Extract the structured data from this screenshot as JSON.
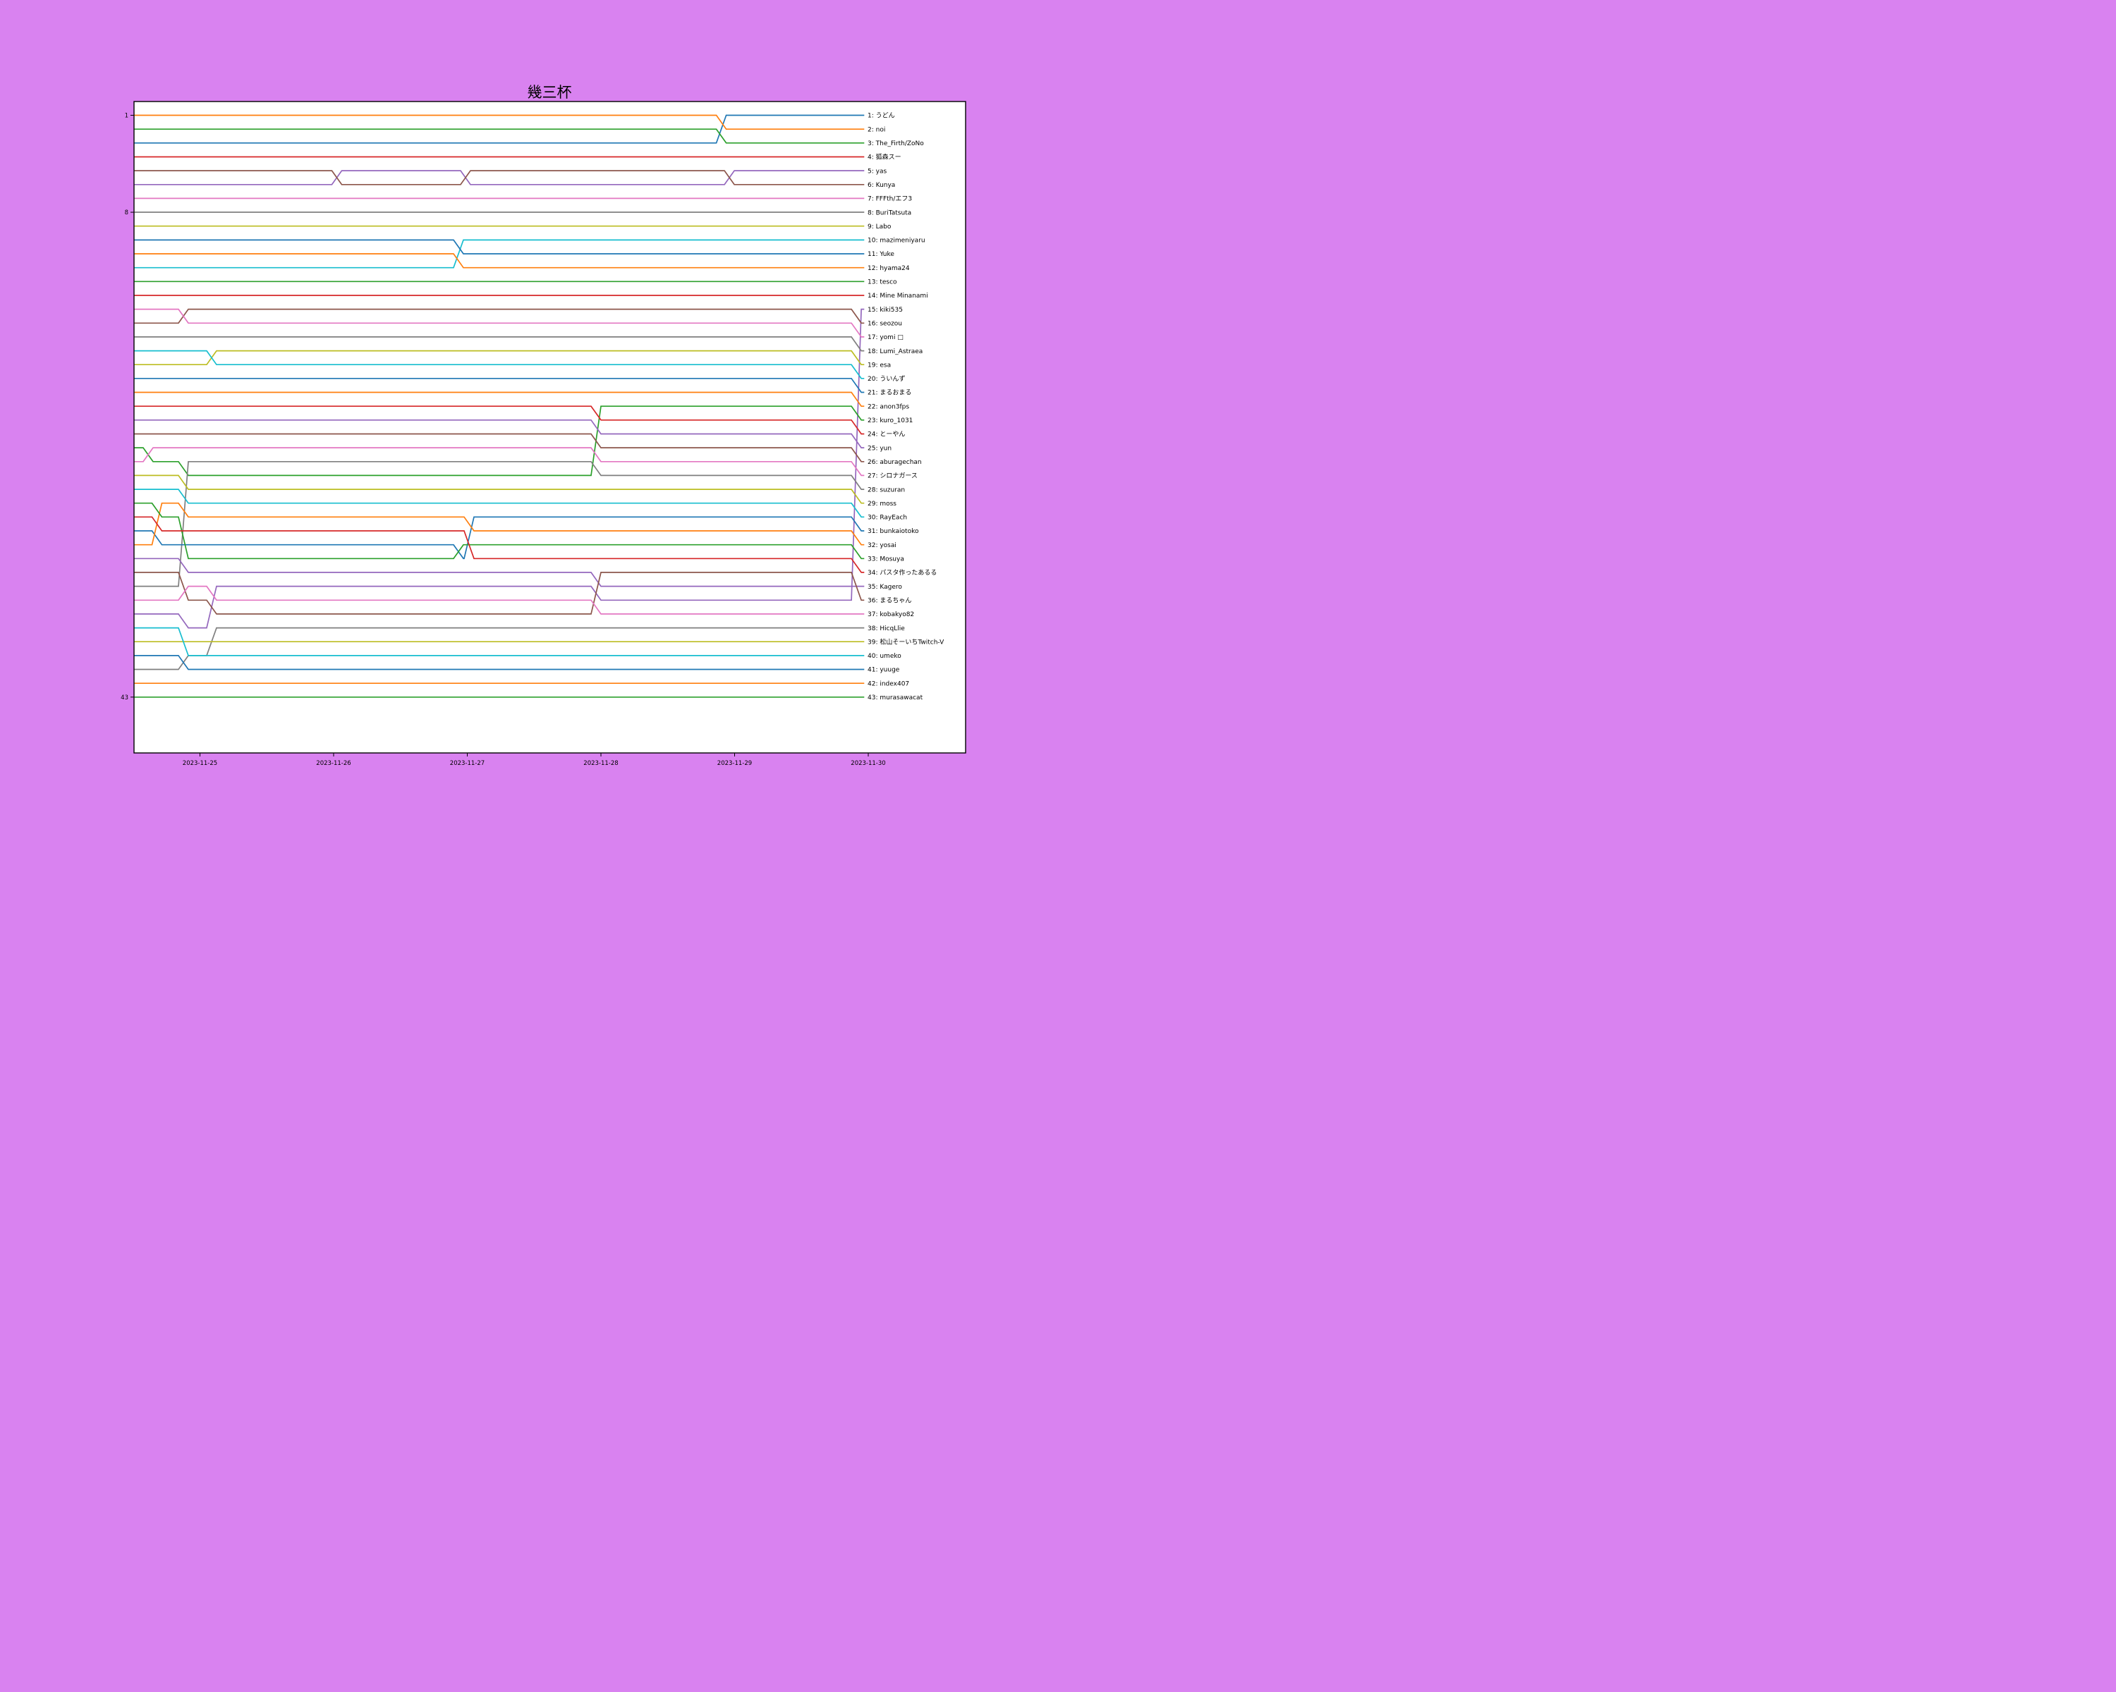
{
  "title": "幾三杯",
  "background_color": "#d982f0",
  "plot_area_color": "#ffffff",
  "frame_color": "#000000",
  "text_color": "#000000",
  "chart_data": {
    "type": "bump",
    "title": "幾三杯",
    "x_unit": "days since 2023-11-25",
    "x_start": -0.49,
    "x_end": 4.97,
    "grid": false,
    "legend": "right-side rank labels",
    "x_ticks": [
      {
        "t": 0,
        "label": "2023-11-25"
      },
      {
        "t": 1,
        "label": "2023-11-26"
      },
      {
        "t": 2,
        "label": "2023-11-27"
      },
      {
        "t": 3,
        "label": "2023-11-28"
      },
      {
        "t": 4,
        "label": "2023-11-29"
      },
      {
        "t": 5,
        "label": "2023-11-30"
      }
    ],
    "y_ticks": [
      1,
      8,
      43
    ],
    "y_axis_inverted": true,
    "series": [
      {
        "final_rank": 1,
        "name": "うどん",
        "label": "1: うどん",
        "color": "#1f77b4",
        "path": [
          [
            -0.49,
            3
          ],
          [
            3.9,
            1
          ]
        ]
      },
      {
        "final_rank": 2,
        "name": "noi",
        "label": "2: noi",
        "color": "#ff7f0e",
        "path": [
          [
            -0.49,
            1
          ],
          [
            3.9,
            2
          ]
        ]
      },
      {
        "final_rank": 3,
        "name": "The_Firth/ZoNo",
        "label": "3: The_Firth/ZoNo",
        "color": "#2ca02c",
        "path": [
          [
            -0.49,
            2
          ],
          [
            3.9,
            3
          ]
        ]
      },
      {
        "final_rank": 4,
        "name": "狐森スー",
        "label": "4: 狐森スー",
        "color": "#d62728",
        "path": [
          [
            -0.49,
            4
          ]
        ]
      },
      {
        "final_rank": 5,
        "name": "yas",
        "label": "5: yas",
        "color": "#9467bd",
        "path": [
          [
            -0.49,
            6
          ],
          [
            1.024,
            5
          ],
          [
            1.987,
            6
          ],
          [
            3.961,
            5
          ]
        ]
      },
      {
        "final_rank": 6,
        "name": "Kunya",
        "label": "6: Kunya",
        "color": "#8c564b",
        "path": [
          [
            -0.49,
            5
          ],
          [
            1.024,
            6
          ],
          [
            1.987,
            5
          ],
          [
            3.961,
            6
          ]
        ]
      },
      {
        "final_rank": 7,
        "name": "FFFth/エフ3",
        "label": "7: FFFth/エフ3",
        "color": "#e377c2",
        "path": [
          [
            -0.49,
            7
          ]
        ]
      },
      {
        "final_rank": 8,
        "name": "BuriTatsuta",
        "label": "8: BuriTatsuta",
        "color": "#7f7f7f",
        "path": [
          [
            -0.49,
            8
          ]
        ]
      },
      {
        "final_rank": 9,
        "name": "Labo",
        "label": "9: Labo",
        "color": "#bcbd22",
        "path": [
          [
            -0.49,
            9
          ]
        ]
      },
      {
        "final_rank": 10,
        "name": "mazimeniyaru",
        "label": "10: mazimeniyaru",
        "color": "#17becf",
        "path": [
          [
            -0.49,
            12
          ],
          [
            1.934,
            10
          ]
        ]
      },
      {
        "final_rank": 11,
        "name": "Yuke",
        "label": "11: Yuke",
        "color": "#1f77b4",
        "path": [
          [
            -0.49,
            10
          ],
          [
            1.934,
            11
          ]
        ]
      },
      {
        "final_rank": 12,
        "name": "hyama24",
        "label": "12: hyama24",
        "color": "#ff7f0e",
        "path": [
          [
            -0.49,
            11
          ],
          [
            1.934,
            12
          ]
        ]
      },
      {
        "final_rank": 13,
        "name": "tesco",
        "label": "13: tesco",
        "color": "#2ca02c",
        "path": [
          [
            -0.49,
            13
          ]
        ]
      },
      {
        "final_rank": 14,
        "name": "Mine Minanami",
        "label": "14: Mine Minanami",
        "color": "#d62728",
        "path": [
          [
            -0.49,
            14
          ]
        ]
      },
      {
        "final_rank": 15,
        "name": "kiki535",
        "label": "15: kiki535",
        "color": "#9467bd",
        "path": [
          [
            -0.49,
            37
          ],
          [
            -0.124,
            38
          ],
          [
            0.087,
            35
          ],
          [
            2.963,
            36
          ],
          [
            4.911,
            15
          ]
        ]
      },
      {
        "final_rank": 16,
        "name": "seozou",
        "label": "16: seozou",
        "color": "#8c564b",
        "path": [
          [
            -0.49,
            16
          ],
          [
            -0.124,
            15
          ],
          [
            4.911,
            16
          ]
        ]
      },
      {
        "final_rank": 17,
        "name": "yomi □",
        "label": "17: yomi □",
        "color": "#e377c2",
        "path": [
          [
            -0.49,
            15
          ],
          [
            -0.124,
            16
          ],
          [
            4.911,
            17
          ]
        ]
      },
      {
        "final_rank": 18,
        "name": "Lumi_Astraea",
        "label": "18: Lumi_Astraea",
        "color": "#7f7f7f",
        "path": [
          [
            -0.49,
            17
          ],
          [
            4.911,
            18
          ]
        ]
      },
      {
        "final_rank": 19,
        "name": "esa",
        "label": "19: esa",
        "color": "#bcbd22",
        "path": [
          [
            -0.49,
            19
          ],
          [
            0.087,
            18
          ],
          [
            4.911,
            19
          ]
        ]
      },
      {
        "final_rank": 20,
        "name": "ういんず",
        "label": "20: ういんず",
        "color": "#17becf",
        "path": [
          [
            -0.49,
            18
          ],
          [
            0.087,
            19
          ],
          [
            4.911,
            20
          ]
        ]
      },
      {
        "final_rank": 21,
        "name": "まるおまる",
        "label": "21: まるおまる",
        "color": "#1f77b4",
        "path": [
          [
            -0.49,
            20
          ],
          [
            4.911,
            21
          ]
        ]
      },
      {
        "final_rank": 22,
        "name": "anon3fps",
        "label": "22: anon3fps",
        "color": "#ff7f0e",
        "path": [
          [
            -0.49,
            21
          ],
          [
            4.911,
            22
          ]
        ]
      },
      {
        "final_rank": 23,
        "name": "kuro_1031",
        "label": "23: kuro_1031",
        "color": "#2ca02c",
        "path": [
          [
            -0.49,
            25
          ],
          [
            -0.388,
            26
          ],
          [
            -0.124,
            27
          ],
          [
            2.963,
            22
          ],
          [
            4.911,
            23
          ]
        ]
      },
      {
        "final_rank": 24,
        "name": "とーやん",
        "label": "24: とーやん",
        "color": "#d62728",
        "path": [
          [
            -0.49,
            22
          ],
          [
            2.963,
            23
          ],
          [
            4.911,
            24
          ]
        ]
      },
      {
        "final_rank": 25,
        "name": "yun",
        "label": "25: yun",
        "color": "#9467bd",
        "path": [
          [
            -0.49,
            23
          ],
          [
            2.963,
            24
          ],
          [
            4.911,
            25
          ]
        ]
      },
      {
        "final_rank": 26,
        "name": "aburagechan",
        "label": "26: aburagechan",
        "color": "#8c564b",
        "path": [
          [
            -0.49,
            24
          ],
          [
            2.963,
            25
          ],
          [
            4.911,
            26
          ]
        ]
      },
      {
        "final_rank": 27,
        "name": "シロナガース",
        "label": "27: シロナガース",
        "color": "#e377c2",
        "path": [
          [
            -0.49,
            26
          ],
          [
            -0.388,
            25
          ],
          [
            2.963,
            26
          ],
          [
            4.911,
            27
          ]
        ]
      },
      {
        "final_rank": 28,
        "name": "suzuran",
        "label": "28: suzuran",
        "color": "#7f7f7f",
        "path": [
          [
            -0.49,
            35
          ],
          [
            -0.124,
            26
          ],
          [
            2.963,
            27
          ],
          [
            4.911,
            28
          ]
        ]
      },
      {
        "final_rank": 29,
        "name": "moss",
        "label": "29: moss",
        "color": "#bcbd22",
        "path": [
          [
            -0.49,
            27
          ],
          [
            -0.124,
            28
          ],
          [
            4.911,
            29
          ]
        ]
      },
      {
        "final_rank": 30,
        "name": "RayEach",
        "label": "30: RayEach",
        "color": "#17becf",
        "path": [
          [
            -0.49,
            28
          ],
          [
            -0.124,
            29
          ],
          [
            4.911,
            30
          ]
        ]
      },
      {
        "final_rank": 31,
        "name": "bunkaiotoko",
        "label": "31: bunkaiotoko",
        "color": "#1f77b4",
        "path": [
          [
            -0.49,
            31
          ],
          [
            -0.322,
            32
          ],
          [
            1.934,
            33
          ],
          [
            2.013,
            30
          ],
          [
            4.911,
            31
          ]
        ]
      },
      {
        "final_rank": 32,
        "name": "yosai",
        "label": "32: yosai",
        "color": "#ff7f0e",
        "path": [
          [
            -0.49,
            32
          ],
          [
            -0.322,
            29
          ],
          [
            -0.124,
            30
          ],
          [
            2.013,
            31
          ],
          [
            4.911,
            32
          ]
        ]
      },
      {
        "final_rank": 33,
        "name": "Mosuya",
        "label": "33: Mosuya",
        "color": "#2ca02c",
        "path": [
          [
            -0.49,
            29
          ],
          [
            -0.322,
            30
          ],
          [
            -0.124,
            33
          ],
          [
            1.934,
            32
          ],
          [
            4.911,
            33
          ]
        ]
      },
      {
        "final_rank": 34,
        "name": "パスタ作ったあるる",
        "label": "34: パスタ作ったあるる",
        "color": "#d62728",
        "path": [
          [
            -0.49,
            30
          ],
          [
            -0.322,
            31
          ],
          [
            2.013,
            33
          ],
          [
            4.911,
            34
          ]
        ]
      },
      {
        "final_rank": 35,
        "name": "Kagero",
        "label": "35: Kagero",
        "color": "#9467bd",
        "path": [
          [
            -0.49,
            33
          ],
          [
            -0.124,
            34
          ],
          [
            2.963,
            35
          ]
        ]
      },
      {
        "final_rank": 36,
        "name": "まるちゃん",
        "label": "36: まるちゃん",
        "color": "#8c564b",
        "path": [
          [
            -0.49,
            34
          ],
          [
            -0.124,
            36
          ],
          [
            0.087,
            37
          ],
          [
            2.963,
            34
          ],
          [
            4.911,
            36
          ]
        ]
      },
      {
        "final_rank": 37,
        "name": "kobakyo82",
        "label": "37: kobakyo82",
        "color": "#e377c2",
        "path": [
          [
            -0.49,
            36
          ],
          [
            -0.124,
            35
          ],
          [
            0.087,
            36
          ],
          [
            2.963,
            37
          ]
        ]
      },
      {
        "final_rank": 38,
        "name": "HicqLlie",
        "label": "38: HicqLlie",
        "color": "#7f7f7f",
        "path": [
          [
            -0.49,
            41
          ],
          [
            -0.124,
            40
          ],
          [
            0.087,
            38
          ]
        ]
      },
      {
        "final_rank": 39,
        "name": "松山そーいちTwitch-V",
        "label": "39: 松山そーいちTwitch-V",
        "color": "#bcbd22",
        "path": [
          [
            -0.49,
            39
          ]
        ]
      },
      {
        "final_rank": 40,
        "name": "umeko",
        "label": "40: umeko",
        "color": "#17becf",
        "path": [
          [
            -0.49,
            38
          ],
          [
            -0.124,
            40
          ]
        ]
      },
      {
        "final_rank": 41,
        "name": "yuuge",
        "label": "41: yuuge",
        "color": "#1f77b4",
        "path": [
          [
            -0.49,
            40
          ],
          [
            -0.124,
            41
          ]
        ]
      },
      {
        "final_rank": 42,
        "name": "index407",
        "label": "42: index407",
        "color": "#ff7f0e",
        "path": [
          [
            -0.49,
            42
          ]
        ]
      },
      {
        "final_rank": 43,
        "name": "murasawacat",
        "label": "43: murasawacat",
        "color": "#2ca02c",
        "path": [
          [
            -0.49,
            43
          ]
        ]
      }
    ]
  }
}
